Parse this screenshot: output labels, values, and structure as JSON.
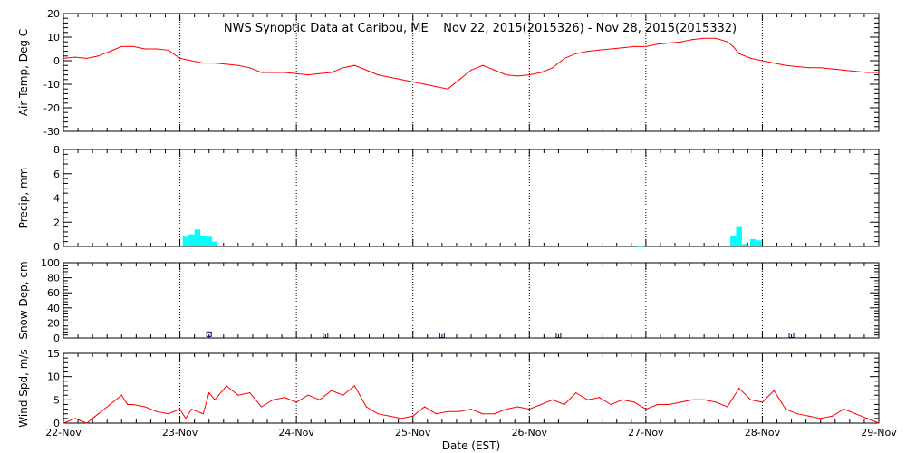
{
  "title": "NWS Synoptic Data at Caribou, ME    Nov 22, 2015(2015326) - Nov 28, 2015(2015332)",
  "xlabel": "Date (EST)",
  "x_ticks": [
    "22-Nov",
    "23-Nov",
    "24-Nov",
    "25-Nov",
    "26-Nov",
    "27-Nov",
    "28-Nov",
    "29-Nov"
  ],
  "colors": {
    "temp_line": "#ff0000",
    "precip_bar": "#00ffff",
    "snow_marker": "#000080",
    "wind_line": "#ff0000",
    "grid": "#000000"
  },
  "chart_data": [
    {
      "type": "line",
      "panel": "air_temp",
      "ylabel": "Air Temp, Deg C",
      "ylim": [
        -30,
        20
      ],
      "yticks": [
        -30,
        -20,
        -10,
        0,
        10,
        20
      ],
      "x_unit": "days since 22-Nov 00:00 EST",
      "x": [
        0,
        0.1,
        0.2,
        0.3,
        0.4,
        0.5,
        0.6,
        0.7,
        0.8,
        0.9,
        1.0,
        1.1,
        1.2,
        1.3,
        1.4,
        1.5,
        1.6,
        1.7,
        1.8,
        1.9,
        2.0,
        2.1,
        2.2,
        2.3,
        2.4,
        2.5,
        2.6,
        2.7,
        2.8,
        2.9,
        3.0,
        3.1,
        3.2,
        3.3,
        3.4,
        3.5,
        3.6,
        3.7,
        3.8,
        3.9,
        4.0,
        4.1,
        4.2,
        4.3,
        4.4,
        4.5,
        4.6,
        4.7,
        4.8,
        4.9,
        5.0,
        5.1,
        5.2,
        5.3,
        5.4,
        5.5,
        5.6,
        5.7,
        5.75,
        5.8,
        5.9,
        6.0,
        6.1,
        6.2,
        6.3,
        6.4,
        6.5,
        6.6,
        6.7,
        6.8,
        6.9,
        7.0
      ],
      "values": [
        1,
        1.5,
        1,
        2,
        4,
        6,
        6,
        5,
        5,
        4.5,
        1,
        0,
        -1,
        -1,
        -1.5,
        -2,
        -3,
        -5,
        -5,
        -5,
        -5.5,
        -6,
        -5.5,
        -5,
        -3,
        -2,
        -4,
        -6,
        -7,
        -8,
        -9,
        -10,
        -11,
        -12,
        -8,
        -4,
        -2,
        -4,
        -6,
        -6.5,
        -6,
        -5,
        -3,
        1,
        3,
        4,
        4.5,
        5,
        5.5,
        6,
        6,
        7,
        7.5,
        8,
        9,
        9.5,
        9.5,
        8,
        6,
        3,
        1,
        0,
        -1,
        -2,
        -2.5,
        -3,
        -3,
        -3.5,
        -4,
        -4.5,
        -5,
        -5
      ]
    },
    {
      "type": "bar",
      "panel": "precip",
      "ylabel": "Precip, mm",
      "ylim": [
        0,
        8
      ],
      "yticks": [
        0,
        2,
        4,
        6,
        8
      ],
      "x_unit": "days since 22-Nov 00:00 EST",
      "x": [
        1.05,
        1.1,
        1.15,
        1.2,
        1.25,
        1.3,
        4.95,
        5.58,
        5.75,
        5.8,
        5.85,
        5.92,
        5.97
      ],
      "values": [
        0.8,
        1.0,
        1.4,
        0.9,
        0.8,
        0.4,
        0.0,
        0.1,
        0.9,
        1.6,
        0.2,
        0.6,
        0.5
      ]
    },
    {
      "type": "scatter",
      "panel": "snow_depth",
      "ylabel": "Snow Dep, cm",
      "ylim": [
        0,
        100
      ],
      "yticks": [
        0,
        20,
        40,
        60,
        80,
        100
      ],
      "x_unit": "days since 22-Nov 00:00 EST",
      "x": [
        1.25,
        2.25,
        3.25,
        4.25,
        6.25
      ],
      "values": [
        5,
        0,
        0,
        0,
        0
      ]
    },
    {
      "type": "line",
      "panel": "wind_speed",
      "ylabel": "Wind Spd, m/s",
      "ylim": [
        0,
        15
      ],
      "yticks": [
        0,
        5,
        10,
        15
      ],
      "x_unit": "days since 22-Nov 00:00 EST",
      "x": [
        0,
        0.1,
        0.2,
        0.3,
        0.4,
        0.5,
        0.55,
        0.6,
        0.7,
        0.8,
        0.9,
        1.0,
        1.05,
        1.1,
        1.2,
        1.25,
        1.3,
        1.4,
        1.45,
        1.5,
        1.6,
        1.7,
        1.8,
        1.9,
        2.0,
        2.1,
        2.2,
        2.3,
        2.4,
        2.5,
        2.6,
        2.7,
        2.8,
        2.9,
        3.0,
        3.1,
        3.2,
        3.3,
        3.4,
        3.5,
        3.6,
        3.7,
        3.8,
        3.9,
        4.0,
        4.1,
        4.2,
        4.3,
        4.4,
        4.5,
        4.6,
        4.7,
        4.8,
        4.9,
        5.0,
        5.1,
        5.2,
        5.3,
        5.4,
        5.5,
        5.6,
        5.7,
        5.8,
        5.9,
        6.0,
        6.1,
        6.2,
        6.3,
        6.4,
        6.5,
        6.6,
        6.7,
        6.8,
        6.9,
        6.95,
        7.0
      ],
      "values": [
        0,
        1,
        0,
        2,
        4,
        6,
        4,
        4,
        3.5,
        2.5,
        2,
        3,
        1,
        3,
        2,
        6.5,
        5,
        8,
        7,
        6,
        6.5,
        3.5,
        5,
        5.5,
        4.5,
        6,
        5,
        7,
        6,
        8,
        3.5,
        2,
        1.5,
        1,
        1.5,
        3.5,
        2,
        2.5,
        2.5,
        3,
        2,
        2,
        3,
        3.5,
        3,
        4,
        5,
        4,
        6.5,
        5,
        5.5,
        4,
        5,
        4.5,
        3,
        4,
        4,
        4.5,
        5,
        5,
        4.5,
        3.5,
        7.5,
        5,
        4.5,
        7,
        3,
        2,
        1.5,
        1,
        1.5,
        3,
        2,
        1,
        0.5,
        0
      ]
    }
  ]
}
